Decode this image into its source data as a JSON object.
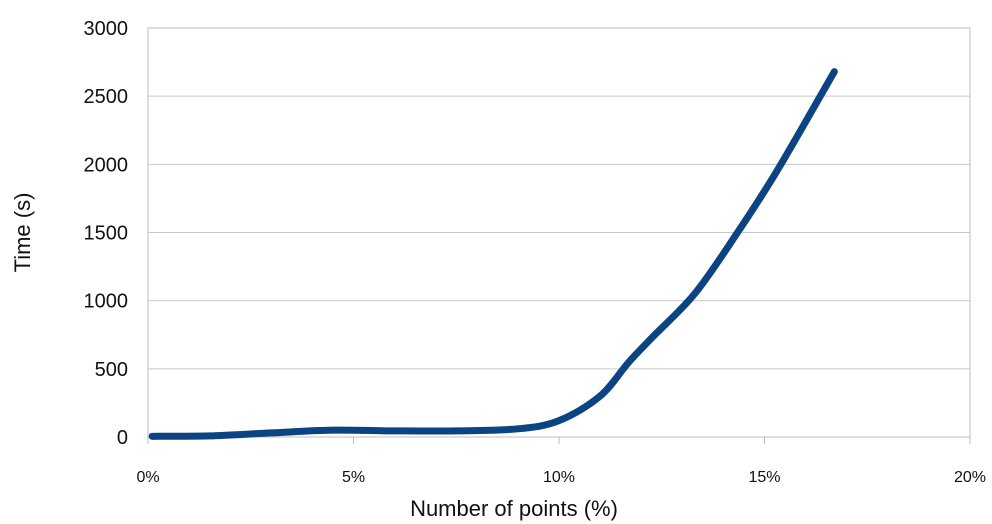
{
  "chart_data": {
    "type": "line",
    "title": "",
    "xlabel": "Number of points (%)",
    "ylabel": "Time (s)",
    "xlim": [
      0,
      20
    ],
    "ylim": [
      0,
      3000
    ],
    "x_ticks": [
      0,
      5,
      10,
      15,
      20
    ],
    "x_tick_labels": [
      "0%",
      "5%",
      "10%",
      "15%",
      "20%"
    ],
    "y_ticks": [
      0,
      500,
      1000,
      1500,
      2000,
      2500,
      3000
    ],
    "y_tick_labels": [
      "0",
      "500",
      "1000",
      "1500",
      "2000",
      "2500",
      "3000"
    ],
    "grid": "horizontal",
    "series": [
      {
        "color": "#0c4483",
        "x": [
          0.1,
          1.5,
          3,
          4.5,
          6,
          7.5,
          9,
          10,
          11,
          11.7,
          12.3,
          13.3,
          14.3,
          15.3,
          16.7
        ],
        "y": [
          5,
          8,
          30,
          50,
          45,
          45,
          60,
          120,
          300,
          550,
          740,
          1050,
          1480,
          1950,
          2680
        ]
      }
    ]
  }
}
